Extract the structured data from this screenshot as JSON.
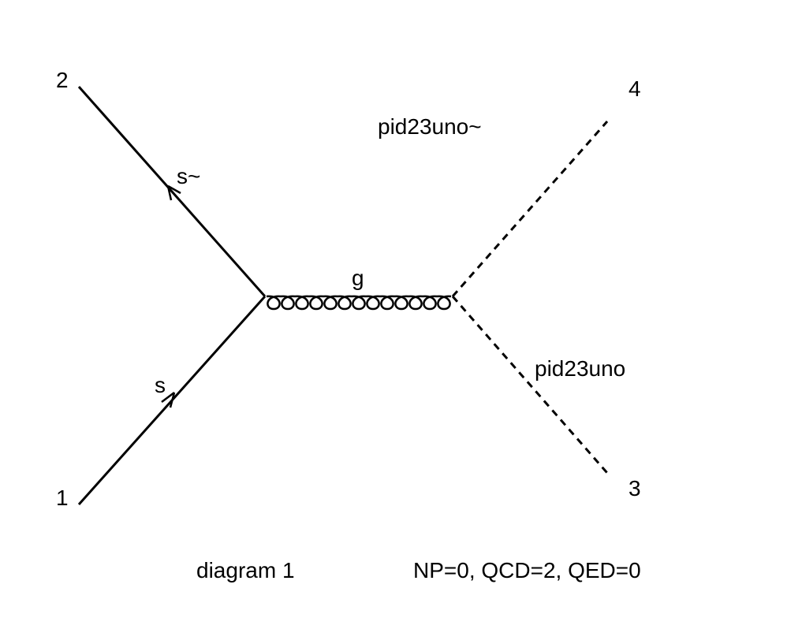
{
  "diagram": {
    "external_labels": {
      "leg1": "1",
      "leg2": "2",
      "leg3": "3",
      "leg4": "4"
    },
    "particles": {
      "incoming_quark": "s",
      "incoming_antiquark": "s~",
      "propagator": "g",
      "outgoing_particle": "pid23uno",
      "outgoing_antiparticle": "pid23uno~"
    },
    "caption": "diagram 1",
    "couplings": "NP=0, QCD=2, QED=0"
  },
  "colors": {
    "line": "#000000",
    "background": "#ffffff"
  }
}
